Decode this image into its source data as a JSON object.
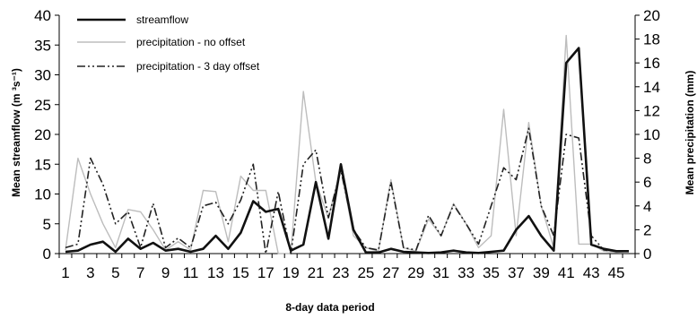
{
  "chart_data": {
    "type": "line",
    "xlabel": "8-day data period",
    "ylabel_left": "Mean streamflow (m ³s⁻¹)",
    "ylabel_right": "Mean precipitation (mm)",
    "x": [
      1,
      2,
      3,
      4,
      5,
      6,
      7,
      8,
      9,
      10,
      11,
      12,
      13,
      14,
      15,
      16,
      17,
      18,
      19,
      20,
      21,
      22,
      23,
      24,
      25,
      26,
      27,
      28,
      29,
      30,
      31,
      32,
      33,
      34,
      35,
      36,
      37,
      38,
      39,
      40,
      41,
      42,
      43,
      44,
      45,
      46
    ],
    "xticks": [
      1,
      3,
      5,
      7,
      9,
      11,
      13,
      15,
      17,
      19,
      21,
      23,
      25,
      27,
      29,
      31,
      33,
      35,
      37,
      39,
      41,
      43,
      45
    ],
    "ylim_left": [
      0,
      40
    ],
    "yticks_left": [
      0,
      5,
      10,
      15,
      20,
      25,
      30,
      35,
      40
    ],
    "ylim_right": [
      0,
      20
    ],
    "yticks_right": [
      0,
      2,
      4,
      6,
      8,
      10,
      12,
      14,
      16,
      18,
      20
    ],
    "grid": false,
    "legend_position": "top-left",
    "series": [
      {
        "name": "streamflow",
        "axis": "left",
        "style": "solid-thick",
        "color": "#111111",
        "values": [
          0.3,
          0.5,
          1.5,
          2,
          0.3,
          2.5,
          0.8,
          1.8,
          0.5,
          0.8,
          0.3,
          0.8,
          3,
          0.8,
          3.5,
          8.8,
          7,
          7.5,
          0.5,
          1.5,
          12,
          2.5,
          15,
          4,
          0.2,
          0.2,
          0.8,
          0.3,
          0.2,
          0.1,
          0.2,
          0.5,
          0.2,
          0.1,
          0.3,
          0.5,
          4,
          6.3,
          3,
          0.5,
          32,
          34.5,
          1.5,
          0.8,
          0.4,
          0.4
        ]
      },
      {
        "name": "precipitation - no offset",
        "axis": "right",
        "style": "solid-thin",
        "color": "#bdbdbd",
        "values": [
          0.3,
          8,
          5,
          2.5,
          0.5,
          3.7,
          3.5,
          2,
          0.3,
          1,
          0.3,
          5.3,
          5.2,
          1,
          6.5,
          5.3,
          5.3,
          0,
          0,
          13.6,
          6,
          3,
          7.2,
          1.5,
          0.5,
          0.2,
          6.2,
          0.5,
          0.2,
          2.9,
          1.5,
          4.2,
          2.5,
          0.5,
          1.5,
          12.1,
          1.5,
          11,
          4,
          0.5,
          18.3,
          0.8,
          0.8,
          0.2,
          0.1,
          0.2
        ]
      },
      {
        "name": "precipitation - 3 day offset",
        "axis": "right",
        "style": "dash-dot",
        "color": "#222222",
        "values": [
          0.5,
          0.8,
          8,
          5.8,
          2.5,
          3.5,
          0.5,
          4.2,
          0.5,
          1.3,
          0.5,
          4,
          4.3,
          2.5,
          4.5,
          7.5,
          0,
          5.2,
          0,
          7.5,
          8.7,
          3,
          7,
          2,
          0.5,
          0.3,
          6,
          0.5,
          0.3,
          3.2,
          1.5,
          4.1,
          2.5,
          0.8,
          4,
          7.2,
          6.2,
          10.5,
          4,
          1.5,
          10,
          9.7,
          1.5,
          0.3,
          0.2,
          0.2
        ]
      }
    ]
  }
}
